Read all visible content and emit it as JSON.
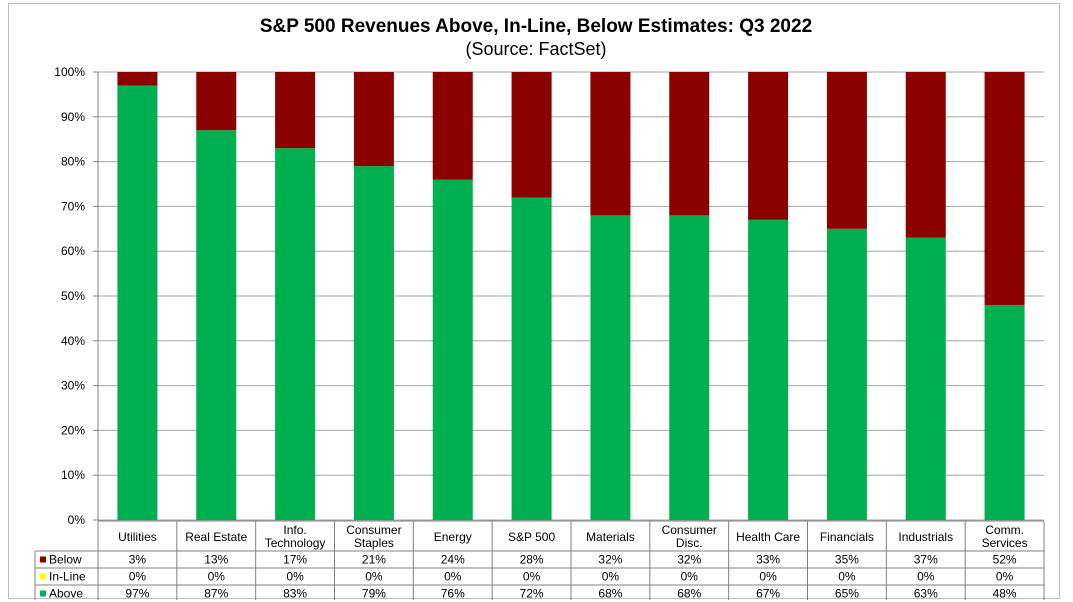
{
  "chart_data": {
    "type": "bar",
    "stacked": true,
    "title": "S&P 500 Revenues Above, In-Line, Below Estimates: Q3 2022",
    "subtitle": "(Source: FactSet)",
    "ylim": [
      0,
      100
    ],
    "yticks": [
      "0%",
      "10%",
      "20%",
      "30%",
      "40%",
      "50%",
      "60%",
      "70%",
      "80%",
      "90%",
      "100%"
    ],
    "grid": true,
    "legend": "data-table-left",
    "categories": [
      [
        "Utilities"
      ],
      [
        "Real Estate"
      ],
      [
        "Info.",
        "Technology"
      ],
      [
        "Consumer",
        "Staples"
      ],
      [
        "Energy"
      ],
      [
        "S&P 500"
      ],
      [
        "Materials"
      ],
      [
        "Consumer",
        "Disc."
      ],
      [
        "Health Care"
      ],
      [
        "Financials"
      ],
      [
        "Industrials"
      ],
      [
        "Comm.",
        "Services"
      ]
    ],
    "series": [
      {
        "name": "Above",
        "color": "#00b050",
        "values": [
          97,
          87,
          83,
          79,
          76,
          72,
          68,
          68,
          67,
          65,
          63,
          48
        ],
        "labels": [
          "97%",
          "87%",
          "83%",
          "79%",
          "76%",
          "72%",
          "68%",
          "68%",
          "67%",
          "65%",
          "63%",
          "48%"
        ]
      },
      {
        "name": "In-Line",
        "color": "#ffff00",
        "values": [
          0,
          0,
          0,
          0,
          0,
          0,
          0,
          0,
          0,
          0,
          0,
          0
        ],
        "labels": [
          "0%",
          "0%",
          "0%",
          "0%",
          "0%",
          "0%",
          "0%",
          "0%",
          "0%",
          "0%",
          "0%",
          "0%"
        ]
      },
      {
        "name": "Below",
        "color": "#8b0000",
        "values": [
          3,
          13,
          17,
          21,
          24,
          28,
          32,
          32,
          33,
          35,
          37,
          52
        ],
        "labels": [
          "3%",
          "13%",
          "17%",
          "21%",
          "24%",
          "28%",
          "32%",
          "32%",
          "33%",
          "35%",
          "37%",
          "52%"
        ]
      }
    ],
    "table_rows": [
      "Below",
      "In-Line",
      "Above"
    ]
  }
}
